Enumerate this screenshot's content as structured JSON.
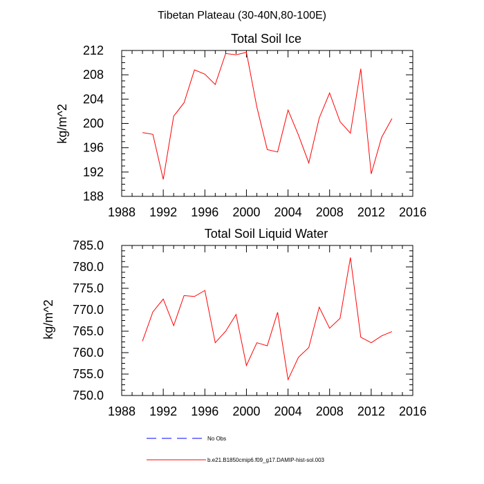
{
  "figure": {
    "title": "Tibetan Plateau (30-40N,80-100E)"
  },
  "chart_data": [
    {
      "type": "line",
      "title": "Total Soil Ice",
      "xlabel": "",
      "ylabel": "kg/m^2",
      "xlim": [
        1988,
        2016
      ],
      "ylim": [
        188,
        212
      ],
      "x_ticks": [
        1988,
        1992,
        1996,
        2000,
        2004,
        2008,
        2012,
        2016
      ],
      "x_tick_labels": [
        "1988",
        "1992",
        "1996",
        "2000",
        "2004",
        "2008",
        "2012",
        "2016"
      ],
      "y_ticks": [
        188,
        192,
        196,
        200,
        204,
        208,
        212
      ],
      "y_tick_labels": [
        "188",
        "192",
        "196",
        "200",
        "204",
        "208",
        "212"
      ],
      "grid": false,
      "series": [
        {
          "name": "b.e21.B1850cmip6.f09_g17.DAMIP-hist-sol.003",
          "color": "#ff0000",
          "x": [
            1990,
            1991,
            1992,
            1993,
            1994,
            1995,
            1996,
            1997,
            1998,
            1999,
            2000,
            2001,
            2002,
            2003,
            2004,
            2005,
            2006,
            2007,
            2008,
            2009,
            2010,
            2011,
            2012,
            2013,
            2014
          ],
          "y": [
            198.5,
            198.2,
            190.8,
            201.2,
            203.4,
            208.8,
            208.1,
            206.4,
            211.5,
            211.3,
            211.7,
            202.7,
            195.7,
            195.3,
            202.2,
            198.1,
            193.5,
            200.9,
            205.0,
            200.3,
            198.4,
            209.0,
            191.7,
            197.7,
            200.8
          ]
        }
      ]
    },
    {
      "type": "line",
      "title": "Total Soil Liquid Water",
      "xlabel": "",
      "ylabel": "kg/m^2",
      "xlim": [
        1988,
        2016
      ],
      "ylim": [
        750,
        785
      ],
      "x_ticks": [
        1988,
        1992,
        1996,
        2000,
        2004,
        2008,
        2012,
        2016
      ],
      "x_tick_labels": [
        "1988",
        "1992",
        "1996",
        "2000",
        "2004",
        "2008",
        "2012",
        "2016"
      ],
      "y_ticks": [
        750,
        755,
        760,
        765,
        770,
        775,
        780,
        785
      ],
      "y_tick_labels": [
        "750.0",
        "755.0",
        "760.0",
        "765.0",
        "770.0",
        "775.0",
        "780.0",
        "785.0"
      ],
      "grid": false,
      "series": [
        {
          "name": "b.e21.B1850cmip6.f09_g17.DAMIP-hist-sol.003",
          "color": "#ff0000",
          "x": [
            1990,
            1991,
            1992,
            1993,
            1994,
            1995,
            1996,
            1997,
            1998,
            1999,
            2000,
            2001,
            2002,
            2003,
            2004,
            2005,
            2006,
            2007,
            2008,
            2009,
            2010,
            2011,
            2012,
            2013,
            2014
          ],
          "y": [
            762.7,
            769.5,
            772.5,
            766.3,
            773.3,
            773.1,
            774.5,
            762.3,
            765.0,
            768.9,
            757.0,
            762.3,
            761.6,
            769.4,
            753.7,
            758.9,
            761.2,
            770.6,
            765.7,
            768.0,
            782.2,
            763.6,
            762.3,
            763.9,
            764.9
          ]
        }
      ]
    }
  ],
  "legend": {
    "items": [
      {
        "label": "No Obs",
        "color": "#0000ff",
        "style": "dashed"
      },
      {
        "label": "b.e21.B1850cmip6.f09_g17.DAMIP-hist-sol.003",
        "color": "#ff0000",
        "style": "solid"
      }
    ]
  }
}
